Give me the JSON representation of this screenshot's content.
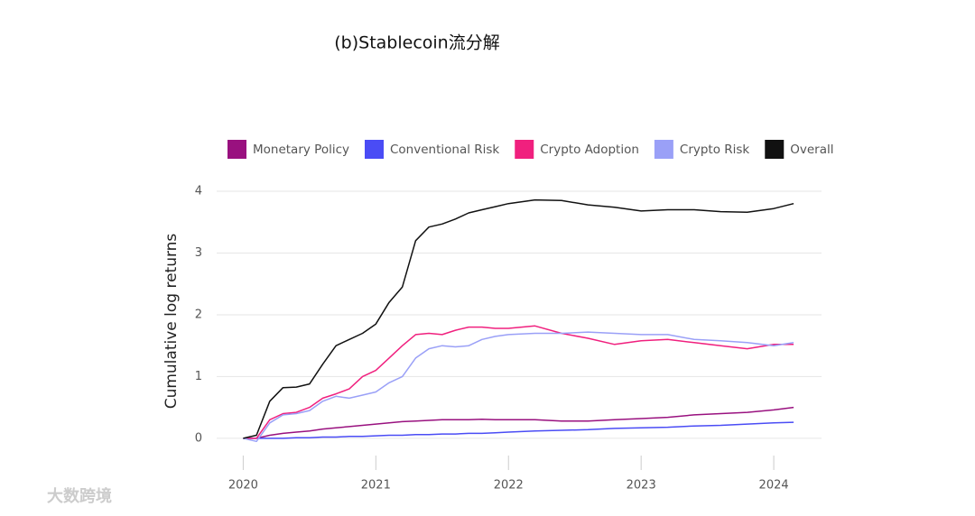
{
  "chart_data": {
    "type": "line",
    "title": "(b)Stablecoin流分解",
    "ylabel": "Cumulative log returns",
    "x": [
      2020.0,
      2020.1,
      2020.2,
      2020.3,
      2020.4,
      2020.5,
      2020.6,
      2020.7,
      2020.8,
      2020.9,
      2021.0,
      2021.1,
      2021.2,
      2021.3,
      2021.4,
      2021.5,
      2021.6,
      2021.7,
      2021.8,
      2021.9,
      2022.0,
      2022.2,
      2022.4,
      2022.6,
      2022.8,
      2023.0,
      2023.2,
      2023.4,
      2023.6,
      2023.8,
      2024.0,
      2024.15
    ],
    "series": [
      {
        "name": "Monetary Policy",
        "color": "#99117f",
        "values": [
          0,
          0,
          0.05,
          0.08,
          0.1,
          0.12,
          0.15,
          0.17,
          0.19,
          0.21,
          0.23,
          0.25,
          0.27,
          0.28,
          0.29,
          0.3,
          0.3,
          0.3,
          0.31,
          0.3,
          0.3,
          0.3,
          0.28,
          0.28,
          0.3,
          0.32,
          0.34,
          0.38,
          0.4,
          0.42,
          0.46,
          0.5
        ]
      },
      {
        "name": "Conventional Risk",
        "color": "#4a4cf5",
        "values": [
          0,
          0,
          0,
          0,
          0.01,
          0.01,
          0.02,
          0.02,
          0.03,
          0.03,
          0.04,
          0.05,
          0.05,
          0.06,
          0.06,
          0.07,
          0.07,
          0.08,
          0.08,
          0.09,
          0.1,
          0.12,
          0.13,
          0.14,
          0.16,
          0.17,
          0.18,
          0.2,
          0.21,
          0.23,
          0.25,
          0.26
        ]
      },
      {
        "name": "Crypto Adoption",
        "color": "#f0207e",
        "values": [
          0,
          0,
          0.3,
          0.4,
          0.42,
          0.5,
          0.65,
          0.72,
          0.8,
          1.0,
          1.1,
          1.3,
          1.5,
          1.68,
          1.7,
          1.68,
          1.75,
          1.8,
          1.8,
          1.78,
          1.78,
          1.82,
          1.7,
          1.62,
          1.52,
          1.58,
          1.6,
          1.55,
          1.5,
          1.45,
          1.52,
          1.52
        ]
      },
      {
        "name": "Crypto Risk",
        "color": "#9aa0f7",
        "values": [
          0,
          -0.05,
          0.25,
          0.38,
          0.4,
          0.45,
          0.6,
          0.68,
          0.65,
          0.7,
          0.75,
          0.9,
          1.0,
          1.3,
          1.45,
          1.5,
          1.48,
          1.5,
          1.6,
          1.65,
          1.68,
          1.7,
          1.7,
          1.72,
          1.7,
          1.68,
          1.68,
          1.6,
          1.58,
          1.55,
          1.5,
          1.55
        ]
      },
      {
        "name": "Overall",
        "color": "#111111",
        "values": [
          0,
          0.05,
          0.6,
          0.82,
          0.83,
          0.88,
          1.2,
          1.5,
          1.6,
          1.7,
          1.85,
          2.2,
          2.45,
          3.2,
          3.42,
          3.47,
          3.55,
          3.65,
          3.7,
          3.75,
          3.8,
          3.86,
          3.85,
          3.78,
          3.74,
          3.68,
          3.7,
          3.7,
          3.67,
          3.66,
          3.72,
          3.8
        ]
      }
    ],
    "xlim": [
      2019.8,
      2024.36
    ],
    "xticks": [
      2020,
      2021,
      2022,
      2023,
      2024
    ],
    "ylim": [
      -0.25,
      4
    ],
    "yticks": [
      0,
      1,
      2,
      3,
      4
    ],
    "grid": true
  },
  "watermark": "大数跨境"
}
